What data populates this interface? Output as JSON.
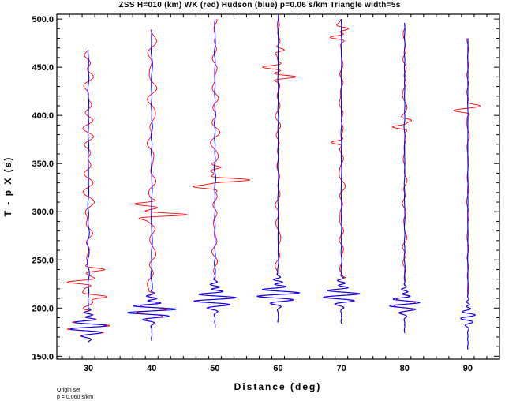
{
  "chart_data": {
    "type": "line",
    "title": "ZSS H=010 (km) WK (red) Hudson (blue) p=0.06 s/km Triangle width=5s",
    "xlabel": "Distance (deg)",
    "ylabel": "T - p X (s)",
    "xlim": [
      25,
      95
    ],
    "ylim": [
      147,
      505
    ],
    "x_ticks": [
      "30",
      "40",
      "50",
      "60",
      "70",
      "80",
      "90"
    ],
    "y_ticks": [
      "150.0",
      "200.0",
      "250.0",
      "300.0",
      "350.0",
      "400.0",
      "450.0",
      "500.0"
    ],
    "footnote": [
      "Origin set",
      "p = 0.060 s/km"
    ],
    "series_colors": {
      "WK": "#ff0000",
      "Hudson": "#0000ff"
    },
    "traces": [
      {
        "distance": 30,
        "t_start": 468,
        "t_end": 165,
        "onset": 180,
        "wk_amp": 3.5,
        "hudson_amp": 3.0,
        "late_activity": 0.5,
        "wk_peaks": [
          [
            227,
            -3.5
          ],
          [
            240,
            2.5
          ],
          [
            212,
            2.5
          ]
        ],
        "hudson_peaks": []
      },
      {
        "distance": 40,
        "t_start": 489,
        "t_end": 166,
        "onset": 197,
        "wk_amp": 2.5,
        "hudson_amp": 4.0,
        "late_activity": 0.45,
        "wk_peaks": [
          [
            297,
            6.0
          ],
          [
            308,
            -3.0
          ]
        ],
        "hudson_peaks": []
      },
      {
        "distance": 50,
        "t_start": 500,
        "t_end": 180,
        "onset": 209,
        "wk_amp": 3.0,
        "hudson_amp": 3.5,
        "late_activity": 0.35,
        "wk_peaks": [
          [
            333,
            5.0
          ],
          [
            326,
            -3.0
          ],
          [
            346,
            1.5
          ]
        ],
        "hudson_peaks": []
      },
      {
        "distance": 60,
        "t_start": 505,
        "t_end": 185,
        "onset": 214,
        "wk_amp": 3.0,
        "hudson_amp": 3.5,
        "late_activity": 0.25,
        "wk_peaks": [
          [
            450,
            -2.5
          ],
          [
            440,
            3.0
          ],
          [
            468,
            1.2
          ]
        ],
        "hudson_peaks": []
      },
      {
        "distance": 70,
        "t_start": 500,
        "t_end": 184,
        "onset": 213,
        "wk_amp": 2.5,
        "hudson_amp": 3.0,
        "late_activity": 0.25,
        "wk_peaks": [
          [
            481,
            -2.0
          ],
          [
            490,
            1.5
          ],
          [
            372,
            -1.5
          ]
        ],
        "hudson_peaks": []
      },
      {
        "distance": 80,
        "t_start": 496,
        "t_end": 174,
        "onset": 204,
        "wk_amp": 1.8,
        "hudson_amp": 2.5,
        "late_activity": 0.2,
        "wk_peaks": [
          [
            388,
            -2.0
          ],
          [
            395,
            1.2
          ]
        ],
        "hudson_peaks": []
      },
      {
        "distance": 90,
        "t_start": 480,
        "t_end": 157,
        "onset": 191,
        "wk_amp": 1.2,
        "hudson_amp": 1.2,
        "late_activity": 0.1,
        "wk_peaks": [
          [
            405,
            -2.0
          ],
          [
            410,
            1.5
          ]
        ],
        "hudson_peaks": []
      }
    ]
  }
}
